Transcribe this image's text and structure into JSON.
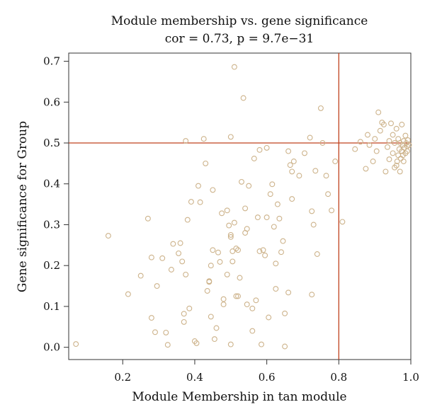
{
  "chart_data": {
    "type": "scatter",
    "title": "Module membership vs. gene significance",
    "subtitle": "cor = 0.73, p = 9.7e−31",
    "xlabel": "Module Membership in tan module",
    "ylabel": "Gene significance for Group",
    "xlim": [
      0.05,
      1.0
    ],
    "ylim": [
      -0.03,
      0.72
    ],
    "xticks": [
      0.2,
      0.4,
      0.6,
      0.8,
      1.0
    ],
    "xtick_labels": [
      "0.2",
      "0.4",
      "0.6",
      "0.8",
      "1.0"
    ],
    "yticks": [
      0.0,
      0.1,
      0.2,
      0.3,
      0.4,
      0.5,
      0.6,
      0.7
    ],
    "ytick_labels": [
      "0.0",
      "0.1",
      "0.2",
      "0.3",
      "0.4",
      "0.5",
      "0.6",
      "0.7"
    ],
    "grid": false,
    "reference_lines": {
      "x": 0.8,
      "y": 0.5
    },
    "colors": {
      "points": "#cdb38b",
      "reference_lines": "#c0411f",
      "axis": "#333333"
    },
    "points": [
      [
        0.07,
        0.008
      ],
      [
        0.16,
        0.273
      ],
      [
        0.215,
        0.13
      ],
      [
        0.25,
        0.175
      ],
      [
        0.27,
        0.315
      ],
      [
        0.28,
        0.22
      ],
      [
        0.28,
        0.072
      ],
      [
        0.29,
        0.037
      ],
      [
        0.295,
        0.15
      ],
      [
        0.31,
        0.218
      ],
      [
        0.32,
        0.036
      ],
      [
        0.325,
        0.006
      ],
      [
        0.335,
        0.19
      ],
      [
        0.34,
        0.253
      ],
      [
        0.355,
        0.23
      ],
      [
        0.36,
        0.255
      ],
      [
        0.365,
        0.21
      ],
      [
        0.37,
        0.062
      ],
      [
        0.37,
        0.082
      ],
      [
        0.375,
        0.178
      ],
      [
        0.375,
        0.505
      ],
      [
        0.38,
        0.312
      ],
      [
        0.385,
        0.095
      ],
      [
        0.39,
        0.356
      ],
      [
        0.4,
        0.015
      ],
      [
        0.405,
        0.01
      ],
      [
        0.41,
        0.395
      ],
      [
        0.415,
        0.355
      ],
      [
        0.425,
        0.51
      ],
      [
        0.43,
        0.45
      ],
      [
        0.435,
        0.138
      ],
      [
        0.44,
        0.16
      ],
      [
        0.44,
        0.162
      ],
      [
        0.445,
        0.2
      ],
      [
        0.445,
        0.075
      ],
      [
        0.45,
        0.385
      ],
      [
        0.45,
        0.238
      ],
      [
        0.455,
        0.02
      ],
      [
        0.46,
        0.047
      ],
      [
        0.465,
        0.232
      ],
      [
        0.47,
        0.209
      ],
      [
        0.475,
        0.328
      ],
      [
        0.48,
        0.105
      ],
      [
        0.48,
        0.118
      ],
      [
        0.49,
        0.335
      ],
      [
        0.49,
        0.178
      ],
      [
        0.495,
        0.298
      ],
      [
        0.5,
        0.515
      ],
      [
        0.5,
        0.275
      ],
      [
        0.5,
        0.27
      ],
      [
        0.5,
        0.007
      ],
      [
        0.505,
        0.235
      ],
      [
        0.505,
        0.21
      ],
      [
        0.51,
        0.305
      ],
      [
        0.51,
        0.686
      ],
      [
        0.515,
        0.242
      ],
      [
        0.515,
        0.125
      ],
      [
        0.52,
        0.238
      ],
      [
        0.52,
        0.125
      ],
      [
        0.525,
        0.17
      ],
      [
        0.53,
        0.405
      ],
      [
        0.535,
        0.61
      ],
      [
        0.54,
        0.34
      ],
      [
        0.54,
        0.28
      ],
      [
        0.545,
        0.29
      ],
      [
        0.545,
        0.105
      ],
      [
        0.55,
        0.395
      ],
      [
        0.56,
        0.095
      ],
      [
        0.56,
        0.04
      ],
      [
        0.565,
        0.462
      ],
      [
        0.57,
        0.115
      ],
      [
        0.575,
        0.318
      ],
      [
        0.58,
        0.235
      ],
      [
        0.58,
        0.483
      ],
      [
        0.585,
        0.007
      ],
      [
        0.59,
        0.238
      ],
      [
        0.595,
        0.225
      ],
      [
        0.6,
        0.488
      ],
      [
        0.6,
        0.318
      ],
      [
        0.605,
        0.073
      ],
      [
        0.61,
        0.375
      ],
      [
        0.615,
        0.399
      ],
      [
        0.62,
        0.295
      ],
      [
        0.625,
        0.143
      ],
      [
        0.625,
        0.205
      ],
      [
        0.63,
        0.35
      ],
      [
        0.635,
        0.315
      ],
      [
        0.64,
        0.233
      ],
      [
        0.645,
        0.26
      ],
      [
        0.65,
        0.083
      ],
      [
        0.65,
        0.002
      ],
      [
        0.66,
        0.48
      ],
      [
        0.66,
        0.134
      ],
      [
        0.665,
        0.446
      ],
      [
        0.67,
        0.43
      ],
      [
        0.67,
        0.363
      ],
      [
        0.675,
        0.455
      ],
      [
        0.69,
        0.42
      ],
      [
        0.705,
        0.475
      ],
      [
        0.72,
        0.513
      ],
      [
        0.725,
        0.333
      ],
      [
        0.725,
        0.129
      ],
      [
        0.73,
        0.3
      ],
      [
        0.735,
        0.432
      ],
      [
        0.74,
        0.228
      ],
      [
        0.75,
        0.585
      ],
      [
        0.755,
        0.5
      ],
      [
        0.765,
        0.42
      ],
      [
        0.77,
        0.375
      ],
      [
        0.78,
        0.335
      ],
      [
        0.79,
        0.455
      ],
      [
        0.81,
        0.307
      ],
      [
        0.845,
        0.485
      ],
      [
        0.86,
        0.503
      ],
      [
        0.875,
        0.437
      ],
      [
        0.88,
        0.52
      ],
      [
        0.885,
        0.495
      ],
      [
        0.895,
        0.455
      ],
      [
        0.9,
        0.51
      ],
      [
        0.905,
        0.48
      ],
      [
        0.91,
        0.575
      ],
      [
        0.915,
        0.53
      ],
      [
        0.92,
        0.55
      ],
      [
        0.925,
        0.545
      ],
      [
        0.93,
        0.43
      ],
      [
        0.935,
        0.49
      ],
      [
        0.94,
        0.46
      ],
      [
        0.94,
        0.505
      ],
      [
        0.945,
        0.548
      ],
      [
        0.95,
        0.475
      ],
      [
        0.95,
        0.52
      ],
      [
        0.955,
        0.44
      ],
      [
        0.955,
        0.5
      ],
      [
        0.96,
        0.445
      ],
      [
        0.96,
        0.535
      ],
      [
        0.962,
        0.455
      ],
      [
        0.965,
        0.47
      ],
      [
        0.965,
        0.51
      ],
      [
        0.968,
        0.485
      ],
      [
        0.97,
        0.43
      ],
      [
        0.97,
        0.5
      ],
      [
        0.972,
        0.462
      ],
      [
        0.975,
        0.48
      ],
      [
        0.975,
        0.545
      ],
      [
        0.977,
        0.495
      ],
      [
        0.978,
        0.47
      ],
      [
        0.98,
        0.455
      ],
      [
        0.98,
        0.505
      ],
      [
        0.982,
        0.488
      ],
      [
        0.985,
        0.475
      ],
      [
        0.985,
        0.518
      ],
      [
        0.987,
        0.5
      ],
      [
        0.99,
        0.492
      ],
      [
        0.99,
        0.48
      ],
      [
        0.992,
        0.507
      ],
      [
        0.995,
        0.495
      ]
    ]
  }
}
